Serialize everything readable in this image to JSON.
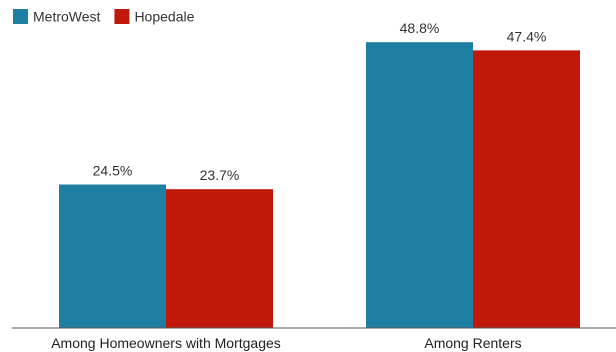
{
  "chart_data": {
    "type": "bar",
    "categories": [
      "Among Homeowners with Mortgages",
      "Among Renters"
    ],
    "series": [
      {
        "name": "MetroWest",
        "values": [
          24.5,
          48.8
        ],
        "labels": [
          "24.5%",
          "48.8%"
        ],
        "color": "#1f7fa3"
      },
      {
        "name": "Hopedale",
        "values": [
          23.7,
          47.4
        ],
        "labels": [
          "23.7%",
          "47.4%"
        ],
        "color": "#c0190c"
      }
    ],
    "ylim": [
      0,
      56
    ],
    "grid": false,
    "legend": "top-left"
  }
}
